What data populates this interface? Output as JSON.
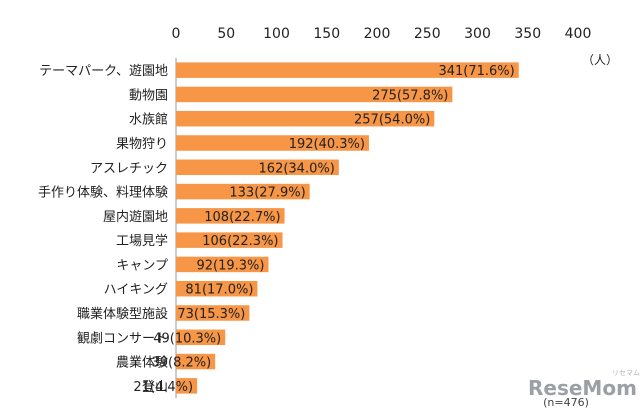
{
  "chart_data": {
    "type": "bar",
    "orientation": "horizontal",
    "categories": [
      "テーマパーク、遊園地",
      "動物園",
      "水族館",
      "果物狩り",
      "アスレチック",
      "手作り体験、料理体験",
      "屋内遊園地",
      "工場見学",
      "キャンプ",
      "ハイキング",
      "職業体験型施設",
      "観劇コンサート",
      "農業体験",
      "登山"
    ],
    "values": [
      341,
      275,
      257,
      192,
      162,
      133,
      108,
      106,
      92,
      81,
      73,
      49,
      39,
      21
    ],
    "data_labels": [
      "341(71.6%)",
      "275(57.8%)",
      "257(54.0%)",
      "192(40.3%)",
      "162(34.0%)",
      "133(27.9%)",
      "108(22.7%)",
      "106(22.3%)",
      "92(19.3%)",
      "81(17.0%)",
      "73(15.3%)",
      "49(10.3%)",
      "39(8.2%)",
      "21(4.4%)"
    ],
    "xlim": [
      0,
      400
    ],
    "xticks": [
      0,
      50,
      100,
      150,
      200,
      250,
      300,
      350,
      400
    ],
    "xticks_position": "top",
    "unit": "（人）",
    "note": "(n=476)",
    "bar_color": "#F79646",
    "grid": false,
    "title": "",
    "xlabel": "",
    "ylabel": ""
  },
  "watermark": {
    "text": "ReseMom",
    "subtext": "リセマム"
  }
}
